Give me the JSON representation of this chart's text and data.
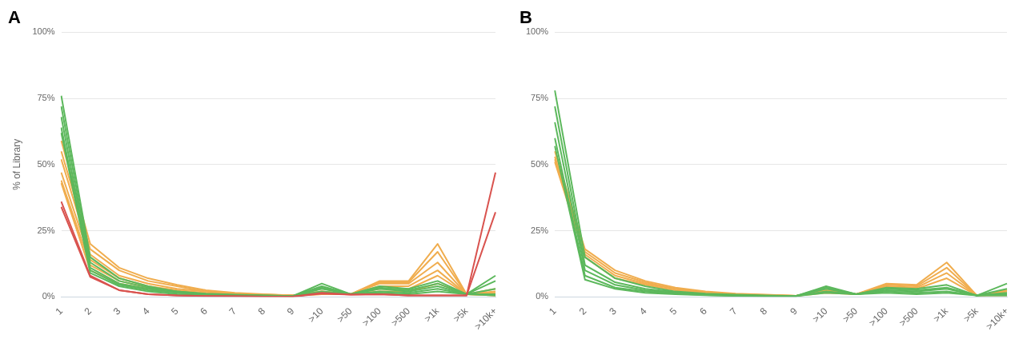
{
  "chart_data": [
    {
      "type": "line",
      "title": "A",
      "ylabel": "% of Library",
      "categories": [
        "1",
        "2",
        "3",
        "4",
        "5",
        "6",
        "7",
        "8",
        "9",
        ">10",
        ">50",
        ">100",
        ">500",
        ">1k",
        ">5k",
        ">10k+"
      ],
      "ylim": [
        0,
        100
      ],
      "yticks": [
        {
          "value": 0,
          "label": "0%"
        },
        {
          "value": 25,
          "label": "25%"
        },
        {
          "value": 50,
          "label": "50%"
        },
        {
          "value": 75,
          "label": "75%"
        },
        {
          "value": 100,
          "label": "100%"
        }
      ],
      "grid": "y",
      "legend": false,
      "marker": "none",
      "line_style": "solid",
      "series": [
        {
          "color": "#f0ad4e",
          "values": [
            59,
            20,
            11,
            7,
            4.5,
            2.5,
            1.5,
            1,
            0.5,
            2,
            1,
            6,
            6,
            20,
            1,
            3
          ]
        },
        {
          "color": "#f0ad4e",
          "values": [
            55,
            18,
            10,
            6,
            4,
            2,
            1.2,
            0.8,
            0.5,
            2,
            1,
            5.5,
            5.5,
            17,
            1,
            2
          ]
        },
        {
          "color": "#f0ad4e",
          "values": [
            52,
            16,
            8,
            5,
            3,
            2,
            1,
            0.8,
            0.5,
            1.5,
            1,
            5,
            5,
            13,
            1,
            1.5
          ]
        },
        {
          "color": "#f0ad4e",
          "values": [
            47,
            14,
            7,
            4,
            2.5,
            1.5,
            1,
            0.6,
            0.5,
            1.5,
            1,
            4,
            4,
            10,
            1,
            1
          ]
        },
        {
          "color": "#f0ad4e",
          "values": [
            44,
            12,
            6,
            3.5,
            2,
            1.2,
            0.8,
            0.6,
            0.5,
            1,
            1,
            3,
            3,
            8,
            1,
            0.5
          ]
        },
        {
          "color": "#f0ad4e",
          "values": [
            43,
            10,
            5,
            3,
            2,
            1,
            0.8,
            0.5,
            0.5,
            1,
            1,
            2,
            2,
            5,
            1,
            0.5
          ]
        },
        {
          "color": "#5cb85c",
          "values": [
            76,
            15,
            7,
            4,
            2,
            1.2,
            0.8,
            0.5,
            0.3,
            5,
            1,
            4,
            3,
            6,
            1,
            8
          ]
        },
        {
          "color": "#5cb85c",
          "values": [
            72,
            13,
            6,
            3.5,
            2,
            1,
            0.7,
            0.5,
            0.3,
            4,
            1,
            3.5,
            2.5,
            5,
            1,
            6
          ]
        },
        {
          "color": "#5cb85c",
          "values": [
            68,
            11,
            5,
            3,
            1.5,
            1,
            0.6,
            0.4,
            0.3,
            3.5,
            1,
            3,
            2,
            4,
            1,
            3
          ]
        },
        {
          "color": "#5cb85c",
          "values": [
            64,
            10,
            4.5,
            2.5,
            1.5,
            0.8,
            0.5,
            0.4,
            0.3,
            3,
            1,
            2,
            1.5,
            3,
            1,
            1
          ]
        },
        {
          "color": "#5cb85c",
          "values": [
            62,
            9,
            4,
            2,
            1,
            0.8,
            0.5,
            0.3,
            0.3,
            2,
            1,
            1.5,
            1,
            2,
            1,
            0.5
          ]
        },
        {
          "color": "#d9534f",
          "values": [
            36,
            8,
            2.5,
            1,
            0.5,
            0.3,
            0.2,
            0.1,
            0.1,
            1.5,
            0.8,
            1,
            0.5,
            0.5,
            0.5,
            47
          ]
        },
        {
          "color": "#d9534f",
          "values": [
            34,
            7.5,
            2.5,
            1,
            0.5,
            0.3,
            0.2,
            0.1,
            0.1,
            1.2,
            0.8,
            1,
            0.5,
            0.5,
            0.5,
            32
          ]
        }
      ]
    },
    {
      "type": "line",
      "title": "B",
      "categories": [
        "1",
        "2",
        "3",
        "4",
        "5",
        "6",
        "7",
        "8",
        "9",
        ">10",
        ">50",
        ">100",
        ">500",
        ">1k",
        ">5k",
        ">10k+"
      ],
      "ylim": [
        0,
        100
      ],
      "yticks": [
        {
          "value": 0,
          "label": "0%"
        },
        {
          "value": 25,
          "label": "25%"
        },
        {
          "value": 50,
          "label": "50%"
        },
        {
          "value": 75,
          "label": "75%"
        },
        {
          "value": 100,
          "label": "100%"
        }
      ],
      "grid": "y",
      "legend": false,
      "marker": "none",
      "line_style": "solid",
      "series": [
        {
          "color": "#f0ad4e",
          "values": [
            55,
            18,
            10,
            6,
            3.5,
            2,
            1.2,
            0.8,
            0.4,
            2.5,
            1,
            5,
            4.5,
            13,
            0.5,
            2.5
          ]
        },
        {
          "color": "#f0ad4e",
          "values": [
            53,
            17,
            9,
            5.5,
            3,
            1.8,
            1,
            0.7,
            0.4,
            2,
            1,
            4.5,
            4,
            11,
            0.5,
            2
          ]
        },
        {
          "color": "#f0ad4e",
          "values": [
            52,
            16,
            8,
            5,
            3,
            1.5,
            1,
            0.6,
            0.4,
            2,
            1,
            4,
            3.5,
            9,
            0.5,
            1
          ]
        },
        {
          "color": "#f0ad4e",
          "values": [
            51,
            15,
            7,
            4.5,
            2.5,
            1.5,
            0.8,
            0.6,
            0.4,
            1.5,
            1,
            3.5,
            3,
            7,
            0.5,
            0.5
          ]
        },
        {
          "color": "#5cb85c",
          "values": [
            78,
            15,
            7,
            4,
            2,
            1.2,
            0.8,
            0.5,
            0.3,
            4,
            1,
            3.5,
            3,
            4.5,
            0.5,
            5
          ]
        },
        {
          "color": "#5cb85c",
          "values": [
            72,
            12,
            5.5,
            3,
            1.8,
            1,
            0.6,
            0.4,
            0.3,
            3.5,
            1,
            3,
            2.5,
            3.5,
            0.5,
            3
          ]
        },
        {
          "color": "#5cb85c",
          "values": [
            66,
            10,
            4.5,
            2.5,
            1.5,
            0.8,
            0.5,
            0.3,
            0.3,
            3,
            1,
            2.5,
            2,
            3,
            0.5,
            1.5
          ]
        },
        {
          "color": "#5cb85c",
          "values": [
            60,
            8,
            3.5,
            2,
            1.2,
            0.7,
            0.4,
            0.3,
            0.3,
            2,
            1,
            2,
            1.5,
            2,
            0.5,
            1
          ]
        },
        {
          "color": "#5cb85c",
          "values": [
            57,
            6.5,
            3,
            1.5,
            1,
            0.6,
            0.4,
            0.3,
            0.3,
            1.5,
            1,
            1.5,
            1,
            1.5,
            0.5,
            0.5
          ]
        }
      ]
    }
  ]
}
